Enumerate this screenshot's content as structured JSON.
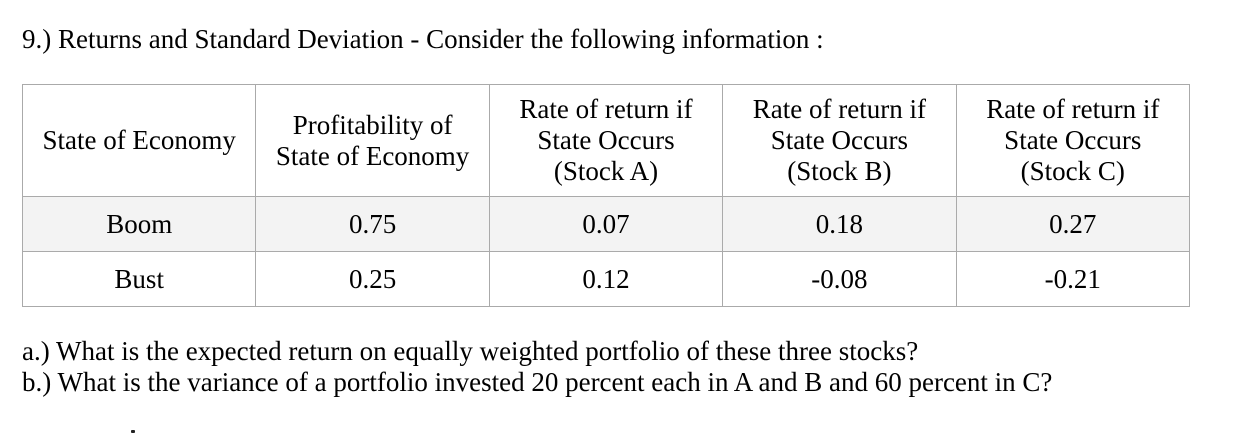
{
  "title": "9.) Returns and Standard Deviation - Consider the following information :",
  "table": {
    "headers": [
      "State of Economy",
      "Profitability of\nState of Economy",
      "Rate of return if\nState Occurs\n(Stock A)",
      "Rate of return if\nState Occurs\n(Stock B)",
      "Rate of return if\nState Occurs\n(Stock C)"
    ],
    "rows": [
      {
        "cells": [
          "Boom",
          "0.75",
          "0.07",
          "0.18",
          "0.27"
        ]
      },
      {
        "cells": [
          "Bust",
          "0.25",
          "0.12",
          "-0.08",
          "-0.21"
        ]
      }
    ]
  },
  "questions": [
    "a.) What is the expected return on equally weighted portfolio of these three stocks?",
    "b.) What is the variance of a portfolio invested 20 percent each in A and B and 60 percent in C?"
  ],
  "colors": {
    "text": "#000000",
    "table_border": "#aaaaaa",
    "row_alt_bg": "#f3f3f3",
    "page_bg": "#ffffff"
  }
}
